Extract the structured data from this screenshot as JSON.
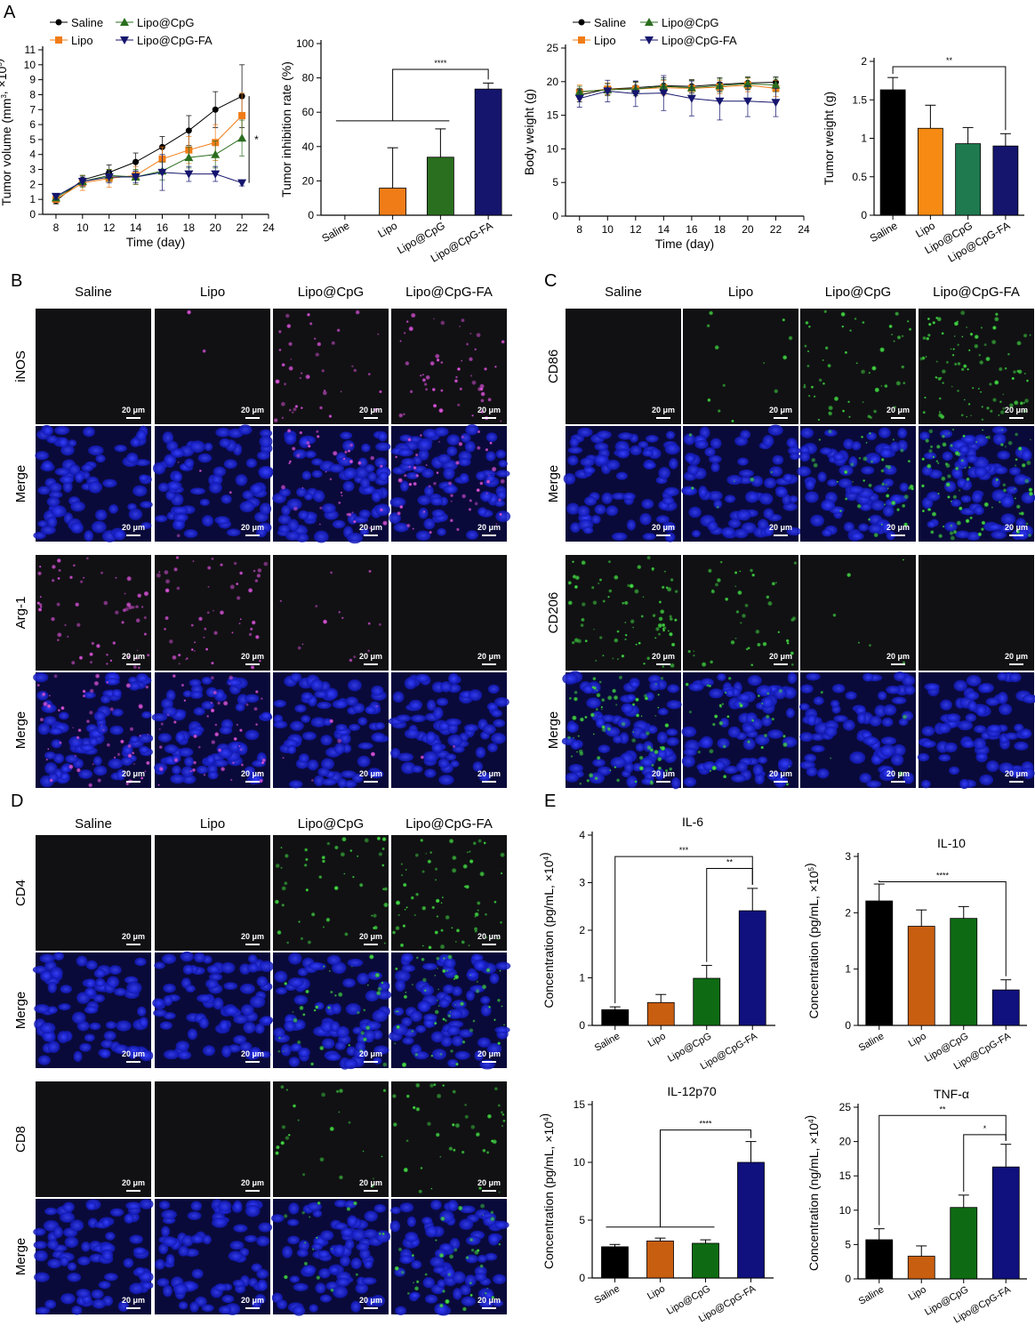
{
  "panel_letters": [
    "A",
    "B",
    "C",
    "D",
    "E"
  ],
  "groups": [
    "Saline",
    "Lipo",
    "Lipo@CpG",
    "Lipo@CpG-FA"
  ],
  "scale_bar_label": "20 μm",
  "colors": {
    "saline": "#000000",
    "lipo": "#f07c17",
    "lipo_cpg": "#2a6e1f",
    "lipo_cpg_fa": "#15156e",
    "lipo_e": "#c85e10",
    "lipo_cpg_e": "#0e6b13",
    "lipo_cpg_fa_e": "#10107e",
    "tumor_weight_cpg": "#1f7a4f",
    "nucleus_blue": "#1a22c8",
    "magenta": "#c040c0",
    "green": "#30c030"
  },
  "panels": {
    "B": {
      "rows": [
        {
          "label": "iNOS",
          "stain": "magenta",
          "merge": false,
          "levels": [
            0.0,
            0.02,
            0.35,
            0.45
          ]
        },
        {
          "label": "Merge",
          "stain": "magenta",
          "merge": true,
          "levels": [
            0.0,
            0.03,
            0.3,
            0.4
          ]
        },
        {
          "label": "Arg-1",
          "stain": "magenta",
          "merge": false,
          "levels": [
            0.5,
            0.45,
            0.12,
            0.0
          ]
        },
        {
          "label": "Merge",
          "stain": "magenta",
          "merge": true,
          "levels": [
            0.45,
            0.4,
            0.05,
            0.02
          ]
        }
      ]
    },
    "C": {
      "rows": [
        {
          "label": "CD86",
          "stain": "green",
          "merge": false,
          "levels": [
            0.0,
            0.1,
            0.45,
            0.8
          ]
        },
        {
          "label": "Merge",
          "stain": "green",
          "merge": true,
          "levels": [
            0.0,
            0.05,
            0.35,
            0.7
          ]
        },
        {
          "label": "CD206",
          "stain": "green",
          "merge": false,
          "levels": [
            0.65,
            0.35,
            0.05,
            0.0
          ]
        },
        {
          "label": "Merge",
          "stain": "green",
          "merge": true,
          "levels": [
            0.6,
            0.3,
            0.03,
            0.0
          ]
        }
      ]
    },
    "D": {
      "rows": [
        {
          "label": "CD4",
          "stain": "green",
          "merge": false,
          "levels": [
            0.0,
            0.0,
            0.4,
            0.55
          ]
        },
        {
          "label": "Merge",
          "stain": "green",
          "merge": true,
          "levels": [
            0.0,
            0.0,
            0.3,
            0.45
          ]
        },
        {
          "label": "CD8",
          "stain": "green",
          "merge": false,
          "levels": [
            0.0,
            0.0,
            0.2,
            0.35
          ]
        },
        {
          "label": "Merge",
          "stain": "green",
          "merge": true,
          "levels": [
            0.0,
            0.0,
            0.15,
            0.3
          ]
        }
      ]
    }
  },
  "chart_data": [
    {
      "id": "tumor-volume",
      "type": "line",
      "xlabel": "Time (day)",
      "ylabel": "Tumor volume (mm3, ×103)",
      "xlim": [
        7,
        24
      ],
      "ylim": [
        0,
        11
      ],
      "xticks": [
        8,
        10,
        12,
        14,
        16,
        18,
        20,
        22,
        24
      ],
      "yticks": [
        0,
        1,
        2,
        3,
        4,
        5,
        6,
        7,
        8,
        9,
        10,
        11
      ],
      "x": [
        8,
        10,
        12,
        14,
        16,
        18,
        20,
        22
      ],
      "legend": "top-left",
      "series": [
        {
          "name": "Saline",
          "color": "#000000",
          "marker": "circle",
          "values": [
            0.9,
            2.3,
            2.8,
            3.5,
            4.5,
            5.6,
            7.0,
            7.9
          ],
          "errors": [
            0.2,
            0.3,
            0.5,
            0.6,
            0.7,
            1.0,
            1.2,
            2.1
          ]
        },
        {
          "name": "Lipo",
          "color": "#f07c17",
          "marker": "square",
          "values": [
            1.0,
            2.1,
            2.4,
            2.6,
            3.7,
            4.3,
            4.8,
            6.6
          ],
          "errors": [
            0.2,
            0.5,
            0.6,
            0.6,
            0.8,
            0.9,
            1.2,
            1.5
          ]
        },
        {
          "name": "Lipo@CpG",
          "color": "#2a6e1f",
          "marker": "triangle-up",
          "values": [
            1.1,
            2.2,
            2.6,
            2.5,
            2.9,
            3.8,
            4.0,
            5.1
          ],
          "errors": [
            0.2,
            0.4,
            0.4,
            0.5,
            0.6,
            0.7,
            0.9,
            1.2
          ]
        },
        {
          "name": "Lipo@CpG-FA",
          "color": "#15156e",
          "marker": "triangle-down",
          "values": [
            1.2,
            2.2,
            2.5,
            2.5,
            2.8,
            2.7,
            2.7,
            2.1
          ],
          "errors": [
            0.2,
            0.3,
            0.4,
            0.4,
            1.2,
            0.5,
            0.5,
            0.2
          ]
        }
      ],
      "significance": [
        {
          "label": "*",
          "from": 7.9,
          "to": 2.1
        }
      ]
    },
    {
      "id": "tumor-inhibition",
      "type": "bar",
      "ylabel": "Tumor inhibition rate (%)",
      "ylim": [
        0,
        100
      ],
      "yticks": [
        0,
        20,
        40,
        60,
        80,
        100
      ],
      "categories": [
        "Saline",
        "Lipo",
        "Lipo@CpG",
        "Lipo@CpG-FA"
      ],
      "values": [
        0,
        15.8,
        33.8,
        73.5
      ],
      "errors": [
        0,
        23.5,
        16.5,
        3.5
      ],
      "colors": [
        "#000000",
        "#f07c17",
        "#2a6e1f",
        "#15156e"
      ],
      "significance": [
        {
          "label": "****",
          "from": 1,
          "to": 3,
          "level": 85
        }
      ],
      "group_line": {
        "from": 0,
        "to": 2,
        "level": 55
      }
    },
    {
      "id": "body-weight",
      "type": "line",
      "xlabel": "Time (day)",
      "ylabel": "Body weight (g)",
      "xlim": [
        7,
        24
      ],
      "ylim": [
        0,
        25
      ],
      "xticks": [
        8,
        10,
        12,
        14,
        16,
        18,
        20,
        22,
        24
      ],
      "yticks": [
        0,
        5,
        10,
        15,
        20,
        25
      ],
      "x": [
        8,
        10,
        12,
        14,
        16,
        18,
        20,
        22
      ],
      "legend": "top-left",
      "series": [
        {
          "name": "Saline",
          "color": "#000000",
          "marker": "circle",
          "values": [
            18.0,
            18.9,
            19.1,
            19.4,
            19.3,
            19.6,
            19.8,
            19.9
          ],
          "errors": [
            1.0,
            0.8,
            0.9,
            1.2,
            1.0,
            1.0,
            0.9,
            0.8
          ]
        },
        {
          "name": "Lipo",
          "color": "#f07c17",
          "marker": "square",
          "values": [
            18.4,
            18.9,
            18.9,
            19.1,
            19.0,
            19.2,
            19.5,
            19.0
          ],
          "errors": [
            1.1,
            0.9,
            1.0,
            1.1,
            1.2,
            1.0,
            1.0,
            1.2
          ]
        },
        {
          "name": "Lipo@CpG",
          "color": "#2a6e1f",
          "marker": "triangle-up",
          "values": [
            18.5,
            18.8,
            18.9,
            19.3,
            19.1,
            19.4,
            19.7,
            19.5
          ],
          "errors": [
            0.8,
            0.9,
            1.0,
            1.0,
            1.1,
            1.0,
            0.9,
            1.0
          ]
        },
        {
          "name": "Lipo@CpG-FA",
          "color": "#15156e",
          "marker": "triangle-down",
          "values": [
            17.5,
            18.6,
            18.2,
            18.3,
            17.5,
            17.1,
            17.1,
            16.9
          ],
          "errors": [
            1.3,
            1.6,
            1.9,
            2.6,
            2.6,
            2.8,
            2.3,
            2.1
          ]
        }
      ]
    },
    {
      "id": "tumor-weight",
      "type": "bar",
      "ylabel": "Tumor weight (g)",
      "ylim": [
        0,
        2.0
      ],
      "yticks": [
        0,
        0.5,
        1.0,
        1.5,
        2.0
      ],
      "categories": [
        "Saline",
        "Lipo",
        "Lipo@CpG",
        "Lipo@CpG-FA"
      ],
      "values": [
        1.63,
        1.13,
        0.93,
        0.9
      ],
      "errors": [
        0.16,
        0.3,
        0.21,
        0.16
      ],
      "colors": [
        "#000000",
        "#f78a12",
        "#1f7a4f",
        "#15156e"
      ],
      "significance": [
        {
          "label": "**",
          "from": 0,
          "to": 3,
          "level": 1.93
        }
      ]
    },
    {
      "id": "il-6",
      "type": "bar",
      "title": "IL-6",
      "ylabel": "Concentration (pg/mL, ×104)",
      "ylim": [
        0,
        4
      ],
      "yticks": [
        0,
        1,
        2,
        3,
        4
      ],
      "categories": [
        "Saline",
        "Lipo",
        "Lipo@CpG",
        "Lipo@CpG-FA"
      ],
      "values": [
        0.33,
        0.48,
        0.99,
        2.41
      ],
      "errors": [
        0.06,
        0.17,
        0.27,
        0.47
      ],
      "colors": [
        "#000000",
        "#c85e10",
        "#0e6b13",
        "#10107e"
      ],
      "significance": [
        {
          "label": "***",
          "from": 0,
          "to": 3,
          "level": 3.55
        },
        {
          "label": "**",
          "from": 2,
          "to": 3,
          "level": 3.3
        }
      ]
    },
    {
      "id": "il-10",
      "type": "bar",
      "title": "IL-10",
      "ylabel": "Concentration (pg/mL, ×105)",
      "ylim": [
        0,
        3
      ],
      "yticks": [
        0,
        1,
        2,
        3
      ],
      "categories": [
        "Saline",
        "Lipo",
        "Lipo@CpG",
        "Lipo@CpG-FA"
      ],
      "values": [
        2.21,
        1.76,
        1.9,
        0.63
      ],
      "errors": [
        0.3,
        0.29,
        0.21,
        0.18
      ],
      "colors": [
        "#000000",
        "#c85e10",
        "#0e6b13",
        "#10107e"
      ],
      "significance": [
        {
          "label": "****",
          "from": 0,
          "to": 3,
          "level": 2.55
        }
      ]
    },
    {
      "id": "il-12p70",
      "type": "bar",
      "title": "IL-12p70",
      "ylabel": "Concentration (pg/mL, ×104)",
      "ylim": [
        0,
        15
      ],
      "yticks": [
        0,
        5,
        10,
        15
      ],
      "categories": [
        "Saline",
        "Lipo",
        "Lipo@CpG",
        "Lipo@CpG-FA"
      ],
      "values": [
        2.7,
        3.2,
        3.0,
        10.0
      ],
      "errors": [
        0.2,
        0.25,
        0.3,
        1.8
      ],
      "colors": [
        "#000000",
        "#c85e10",
        "#0e6b13",
        "#10107e"
      ],
      "significance": [
        {
          "label": "****",
          "from": 1,
          "to": 3,
          "level": 12.8
        }
      ],
      "group_line": {
        "from": 0,
        "to": 2,
        "level": 4.4
      }
    },
    {
      "id": "tnf-alpha",
      "type": "bar",
      "title": "TNF-α",
      "ylabel": "Concentration (ng/mL, ×104)",
      "ylim": [
        0,
        25
      ],
      "yticks": [
        0,
        5,
        10,
        15,
        20,
        25
      ],
      "categories": [
        "Saline",
        "Lipo",
        "Lipo@CpG",
        "Lipo@CpG-FA"
      ],
      "values": [
        5.7,
        3.3,
        10.4,
        16.3
      ],
      "errors": [
        1.6,
        1.5,
        1.8,
        3.3
      ],
      "colors": [
        "#000000",
        "#c85e10",
        "#0e6b13",
        "#10107e"
      ],
      "significance": [
        {
          "label": "**",
          "from": 0,
          "to": 3,
          "level": 23.8
        },
        {
          "label": "*",
          "from": 2,
          "to": 3,
          "level": 21.0
        }
      ]
    }
  ]
}
